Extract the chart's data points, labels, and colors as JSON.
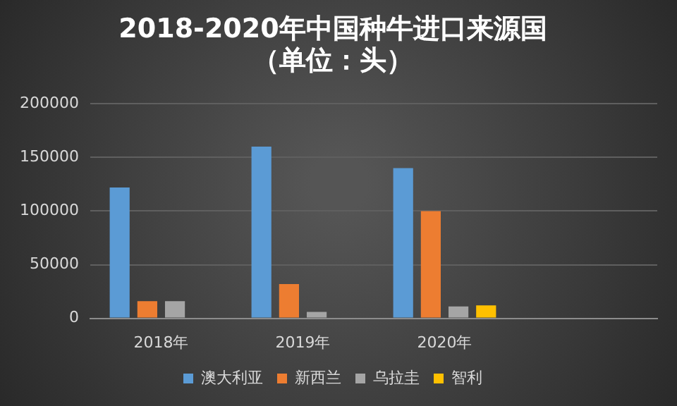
{
  "chart_data": {
    "type": "bar",
    "title": [
      "2018-2020年中国种牛进口来源国",
      "（单位：头）"
    ],
    "categories": [
      "2018年",
      "2019年",
      "2020年",
      null
    ],
    "series": [
      {
        "name": "澳大利亚",
        "color": "#5b9bd5",
        "values": [
          122000,
          160000,
          140000,
          null
        ]
      },
      {
        "name": "新西兰",
        "color": "#ed7d31",
        "values": [
          16000,
          32000,
          100000,
          null
        ]
      },
      {
        "name": "乌拉圭",
        "color": "#a5a5a5",
        "values": [
          16000,
          6000,
          11000,
          null
        ]
      },
      {
        "name": "智利",
        "color": "#ffc000",
        "values": [
          null,
          null,
          12000,
          null
        ]
      }
    ],
    "ylim": [
      0,
      200000
    ],
    "yticks": [
      0,
      50000,
      100000,
      150000,
      200000
    ],
    "grid": "y",
    "legend": "bottom"
  }
}
